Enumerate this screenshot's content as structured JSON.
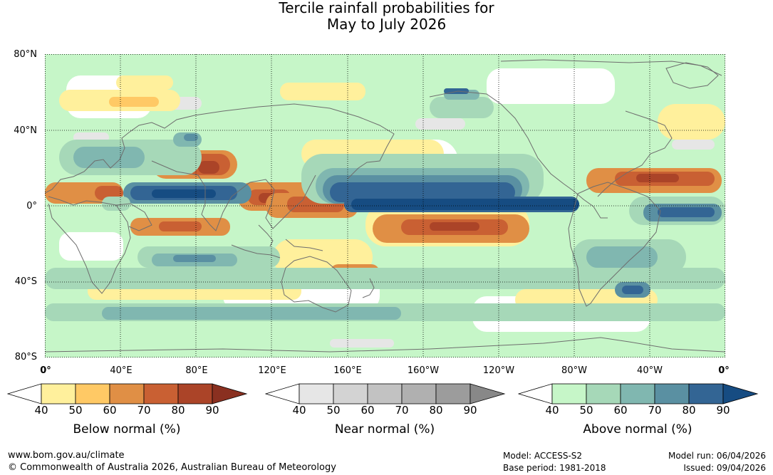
{
  "title": {
    "line1": "Tercile rainfall probabilities for",
    "line2": "May to July 2026"
  },
  "lat_labels": [
    "80°N",
    "40°N",
    "0°",
    "40°S",
    "80°S"
  ],
  "lon_labels": [
    "0°",
    "40°E",
    "80°E",
    "120°E",
    "160°E",
    "160°W",
    "120°W",
    "80°W",
    "40°W",
    "0°"
  ],
  "legends": [
    {
      "title": "Below normal (%)",
      "ticks": [
        "40",
        "50",
        "60",
        "70",
        "80",
        "90"
      ],
      "colors": [
        "#fff09c",
        "#ffc965",
        "#e08f45",
        "#c96033",
        "#ab4428",
        "#8a3020"
      ]
    },
    {
      "title": "Near normal (%)",
      "ticks": [
        "40",
        "50",
        "60",
        "70",
        "80",
        "90"
      ],
      "colors": [
        "#e6e6e6",
        "#d3d3d3",
        "#c2c2c2",
        "#b0b0b0",
        "#9c9c9c",
        "#888888"
      ]
    },
    {
      "title": "Above normal (%)",
      "ticks": [
        "40",
        "50",
        "60",
        "70",
        "80",
        "90"
      ],
      "colors": [
        "#c6f6c8",
        "#a6d8b8",
        "#80b7b0",
        "#5a90a2",
        "#336594",
        "#164c82"
      ]
    }
  ],
  "footer": {
    "url": "www.bom.gov.au/climate",
    "copyright": "© Commonwealth of Australia 2026, Australian Bureau of Meteorology",
    "model": "Model: ACCESS-S2",
    "base_period": "Base period: 1981-2018",
    "model_run": "Model run: 06/04/2026",
    "issued": "Issued: 09/04/2026"
  }
}
